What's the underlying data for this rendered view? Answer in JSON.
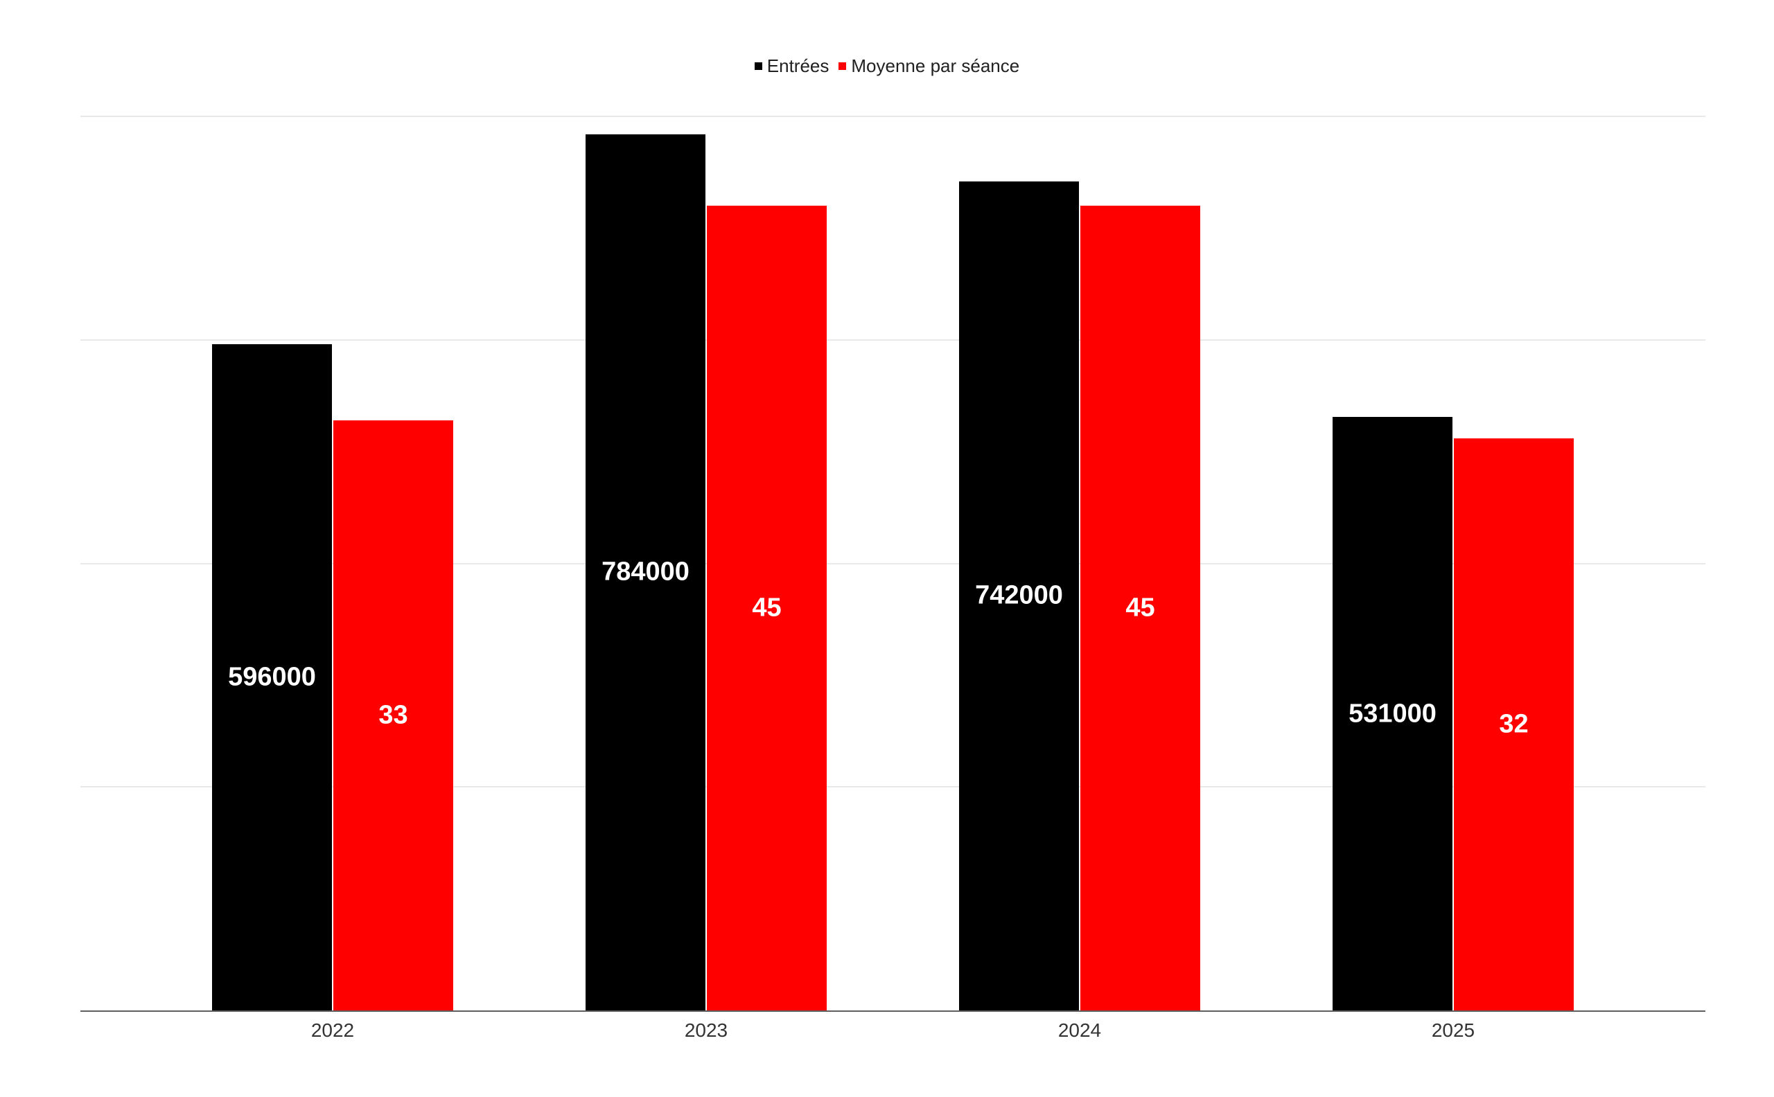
{
  "background_color": "#ffffff",
  "legend": {
    "position": "top-center",
    "items": [
      {
        "label": "Entrées",
        "color": "#000000"
      },
      {
        "label": "Moyenne par séance",
        "color": "#ff0000"
      }
    ]
  },
  "chart_data": {
    "type": "bar",
    "title": "",
    "xlabel": "",
    "ylabel": "",
    "categories": [
      "2022",
      "2023",
      "2024",
      "2025"
    ],
    "series": [
      {
        "key": "entrees",
        "name": "Entrées",
        "axis": "primary",
        "color": "#000000",
        "values": [
          596000,
          784000,
          742000,
          531000
        ],
        "data_labels": [
          "596000",
          "784000",
          "742000",
          "531000"
        ],
        "data_label_color": "#ffffff"
      },
      {
        "key": "moyenne",
        "name": "Moyenne par séance",
        "axis": "secondary",
        "color": "#ff0000",
        "values": [
          33,
          45,
          45,
          32
        ],
        "data_labels": [
          "33",
          "45",
          "45",
          "32"
        ],
        "data_label_color": "#ffffff"
      }
    ],
    "primary_ylim": [
      0,
      800000
    ],
    "secondary_ylim": [
      0,
      50
    ],
    "gridline_step_primary": 200000,
    "grid": true,
    "y_tick_labels_shown": false,
    "legend_position": "top-center",
    "gridline_color": "#e9e9e9",
    "axis_line_color": "#5f5f5f",
    "x_tick_label_color": "#333333"
  }
}
